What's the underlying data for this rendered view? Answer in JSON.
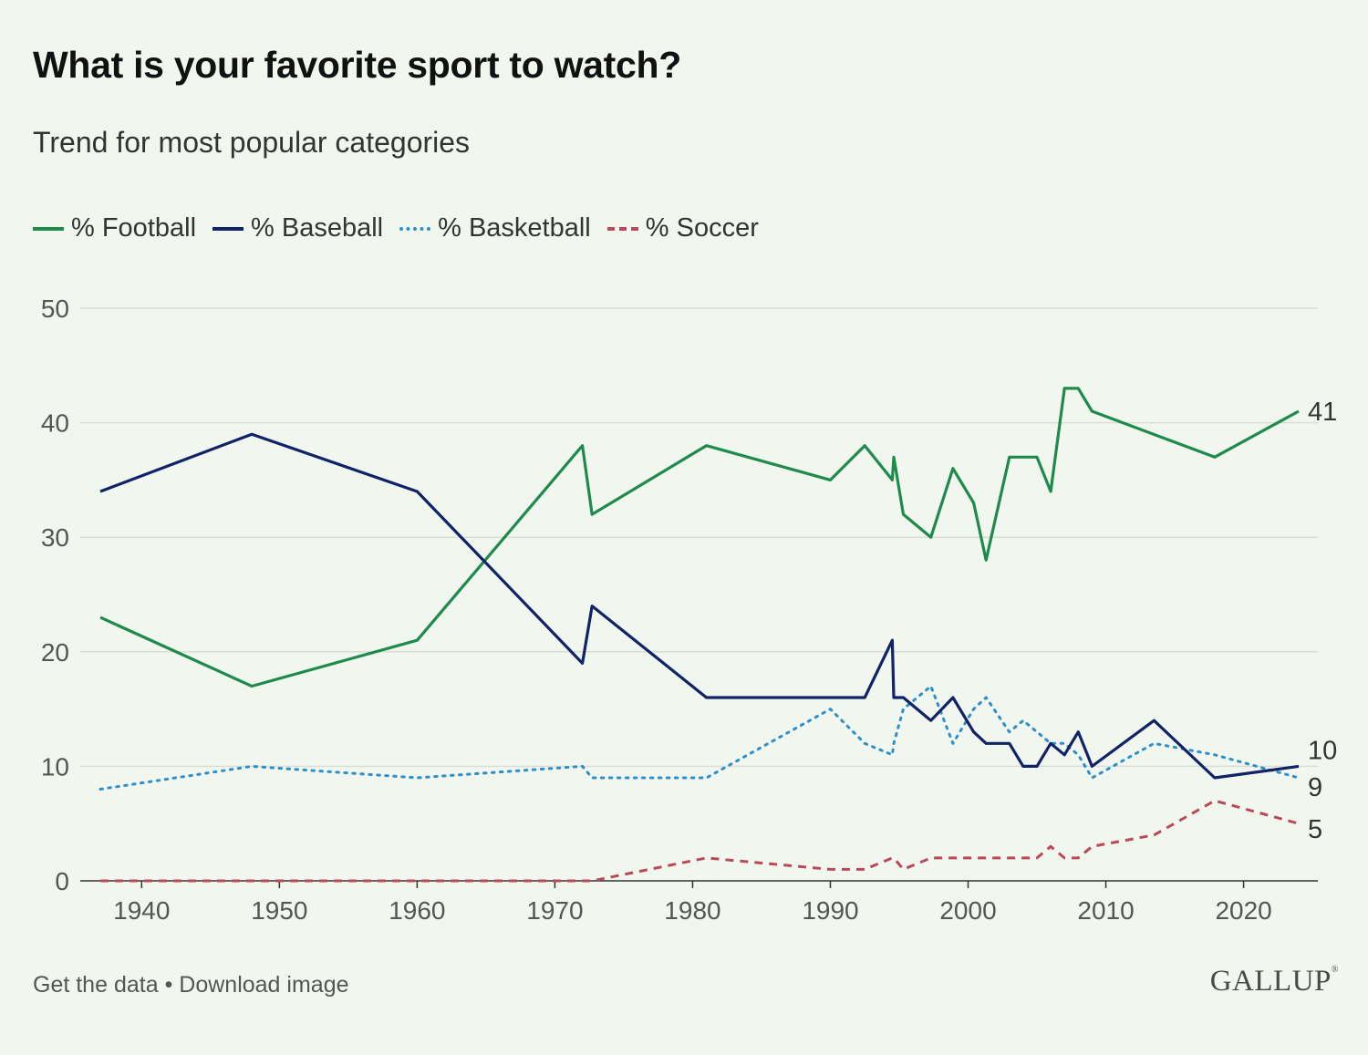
{
  "header": {
    "title": "What is your favorite sport to watch?",
    "subtitle": "Trend for most popular categories"
  },
  "footer": {
    "get_data": "Get the data",
    "separator": "•",
    "download": "Download image",
    "logo": "GALLUP"
  },
  "chart_data": {
    "type": "line",
    "title": "What is your favorite sport to watch?",
    "subtitle": "Trend for most popular categories",
    "xlabel": "",
    "ylabel": "",
    "xlim": [
      1937,
      2024
    ],
    "ylim": [
      0,
      50
    ],
    "x_ticks": [
      1940,
      1950,
      1960,
      1970,
      1980,
      1990,
      2000,
      2010,
      2020
    ],
    "y_ticks": [
      0,
      10,
      20,
      30,
      40,
      50
    ],
    "grid": "horizontal",
    "legend_position": "top-left",
    "series": [
      {
        "name": "% Football",
        "color": "#1e8a4c",
        "style": "solid",
        "end_label": "41",
        "points": [
          [
            1937,
            23
          ],
          [
            1948,
            17
          ],
          [
            1960,
            21
          ],
          [
            1972,
            38
          ],
          [
            1972.7,
            32
          ],
          [
            1981,
            38
          ],
          [
            1990,
            35
          ],
          [
            1992.5,
            38
          ],
          [
            1994.5,
            35
          ],
          [
            1994.6,
            37
          ],
          [
            1995.3,
            32
          ],
          [
            1997.3,
            30
          ],
          [
            1998.9,
            36
          ],
          [
            2000.4,
            33
          ],
          [
            2001.3,
            28
          ],
          [
            2003,
            37
          ],
          [
            2005,
            37
          ],
          [
            2006,
            34
          ],
          [
            2007,
            43
          ],
          [
            2008,
            43
          ],
          [
            2009,
            41
          ],
          [
            2017.9,
            37
          ],
          [
            2024,
            41
          ]
        ]
      },
      {
        "name": "% Baseball",
        "color": "#0f2366",
        "style": "solid",
        "end_label": "10",
        "points": [
          [
            1937,
            34
          ],
          [
            1948,
            39
          ],
          [
            1960,
            34
          ],
          [
            1972,
            19
          ],
          [
            1972.7,
            24
          ],
          [
            1981,
            16
          ],
          [
            1990,
            16
          ],
          [
            1992.5,
            16
          ],
          [
            1994.5,
            21
          ],
          [
            1994.6,
            16
          ],
          [
            1995.3,
            16
          ],
          [
            1997.3,
            14
          ],
          [
            1998.9,
            16
          ],
          [
            2000.4,
            13
          ],
          [
            2001.3,
            12
          ],
          [
            2003,
            12
          ],
          [
            2004,
            10
          ],
          [
            2005,
            10
          ],
          [
            2006,
            12
          ],
          [
            2007,
            11
          ],
          [
            2008,
            13
          ],
          [
            2009,
            10
          ],
          [
            2013.5,
            14
          ],
          [
            2017.9,
            9
          ],
          [
            2024,
            10
          ]
        ]
      },
      {
        "name": "% Basketball",
        "color": "#2f8fc9",
        "style": "dotted",
        "end_label": "9",
        "points": [
          [
            1937,
            8
          ],
          [
            1948,
            10
          ],
          [
            1960,
            9
          ],
          [
            1972,
            10
          ],
          [
            1972.7,
            9
          ],
          [
            1981,
            9
          ],
          [
            1990,
            15
          ],
          [
            1992.5,
            12
          ],
          [
            1994.5,
            11
          ],
          [
            1994.6,
            12
          ],
          [
            1995.3,
            15
          ],
          [
            1997.3,
            17
          ],
          [
            1998.9,
            12
          ],
          [
            2000.4,
            15
          ],
          [
            2001.3,
            16
          ],
          [
            2003,
            13
          ],
          [
            2004,
            14
          ],
          [
            2005,
            13
          ],
          [
            2006,
            12
          ],
          [
            2007,
            12
          ],
          [
            2008,
            11
          ],
          [
            2009,
            9
          ],
          [
            2013.5,
            12
          ],
          [
            2017.9,
            11
          ],
          [
            2024,
            9
          ]
        ]
      },
      {
        "name": "% Soccer",
        "color": "#b84a5a",
        "style": "dashed",
        "end_label": "5",
        "points": [
          [
            1937,
            0
          ],
          [
            1948,
            0
          ],
          [
            1960,
            0
          ],
          [
            1972,
            0
          ],
          [
            1972.7,
            0
          ],
          [
            1981,
            2
          ],
          [
            1990,
            1
          ],
          [
            1992.5,
            1
          ],
          [
            1994.5,
            2
          ],
          [
            1994.6,
            2
          ],
          [
            1995.3,
            1
          ],
          [
            1997.3,
            2
          ],
          [
            1998.9,
            2
          ],
          [
            2000.4,
            2
          ],
          [
            2001.3,
            2
          ],
          [
            2003,
            2
          ],
          [
            2005,
            2
          ],
          [
            2006,
            3
          ],
          [
            2007,
            2
          ],
          [
            2008,
            2
          ],
          [
            2009,
            3
          ],
          [
            2013.5,
            4
          ],
          [
            2017.9,
            7
          ],
          [
            2024,
            5
          ]
        ]
      }
    ]
  }
}
